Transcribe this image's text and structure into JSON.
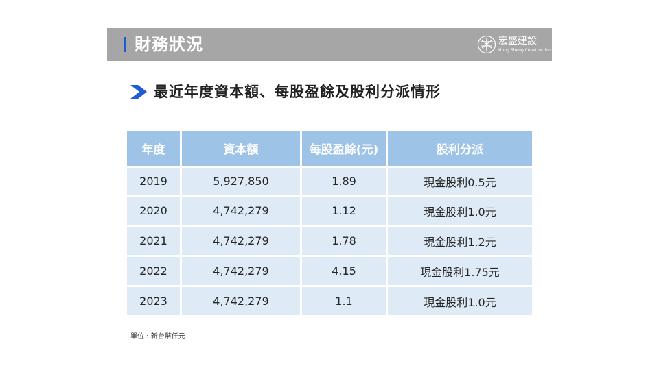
{
  "header": {
    "title": "財務狀況",
    "logo": {
      "name": "宏盛建設",
      "subtitle": "Hung Sheng Construction"
    }
  },
  "section": {
    "title": "最近年度資本額、每股盈餘及股利分派情形"
  },
  "table": {
    "headers": [
      "年度",
      "資本額",
      "每股盈餘(元)",
      "股利分派"
    ],
    "rows": [
      [
        "2019",
        "5,927,850",
        "1.89",
        "現金股利0.5元"
      ],
      [
        "2020",
        "4,742,279",
        "1.12",
        "現金股利1.0元"
      ],
      [
        "2021",
        "4,742,279",
        "1.78",
        "現金股利1.2元"
      ],
      [
        "2022",
        "4,742,279",
        "4.15",
        "現金股利1.75元"
      ],
      [
        "2023",
        "4,742,279",
        "1.1",
        "現金股利1.0元"
      ]
    ]
  },
  "footnote": "單位 : 新台幣仟元",
  "colors": {
    "header_bar": "#a6a6a6",
    "accent": "#1f5bd6",
    "table_header": "#9dc3e6",
    "table_cell": "#deebf7"
  }
}
